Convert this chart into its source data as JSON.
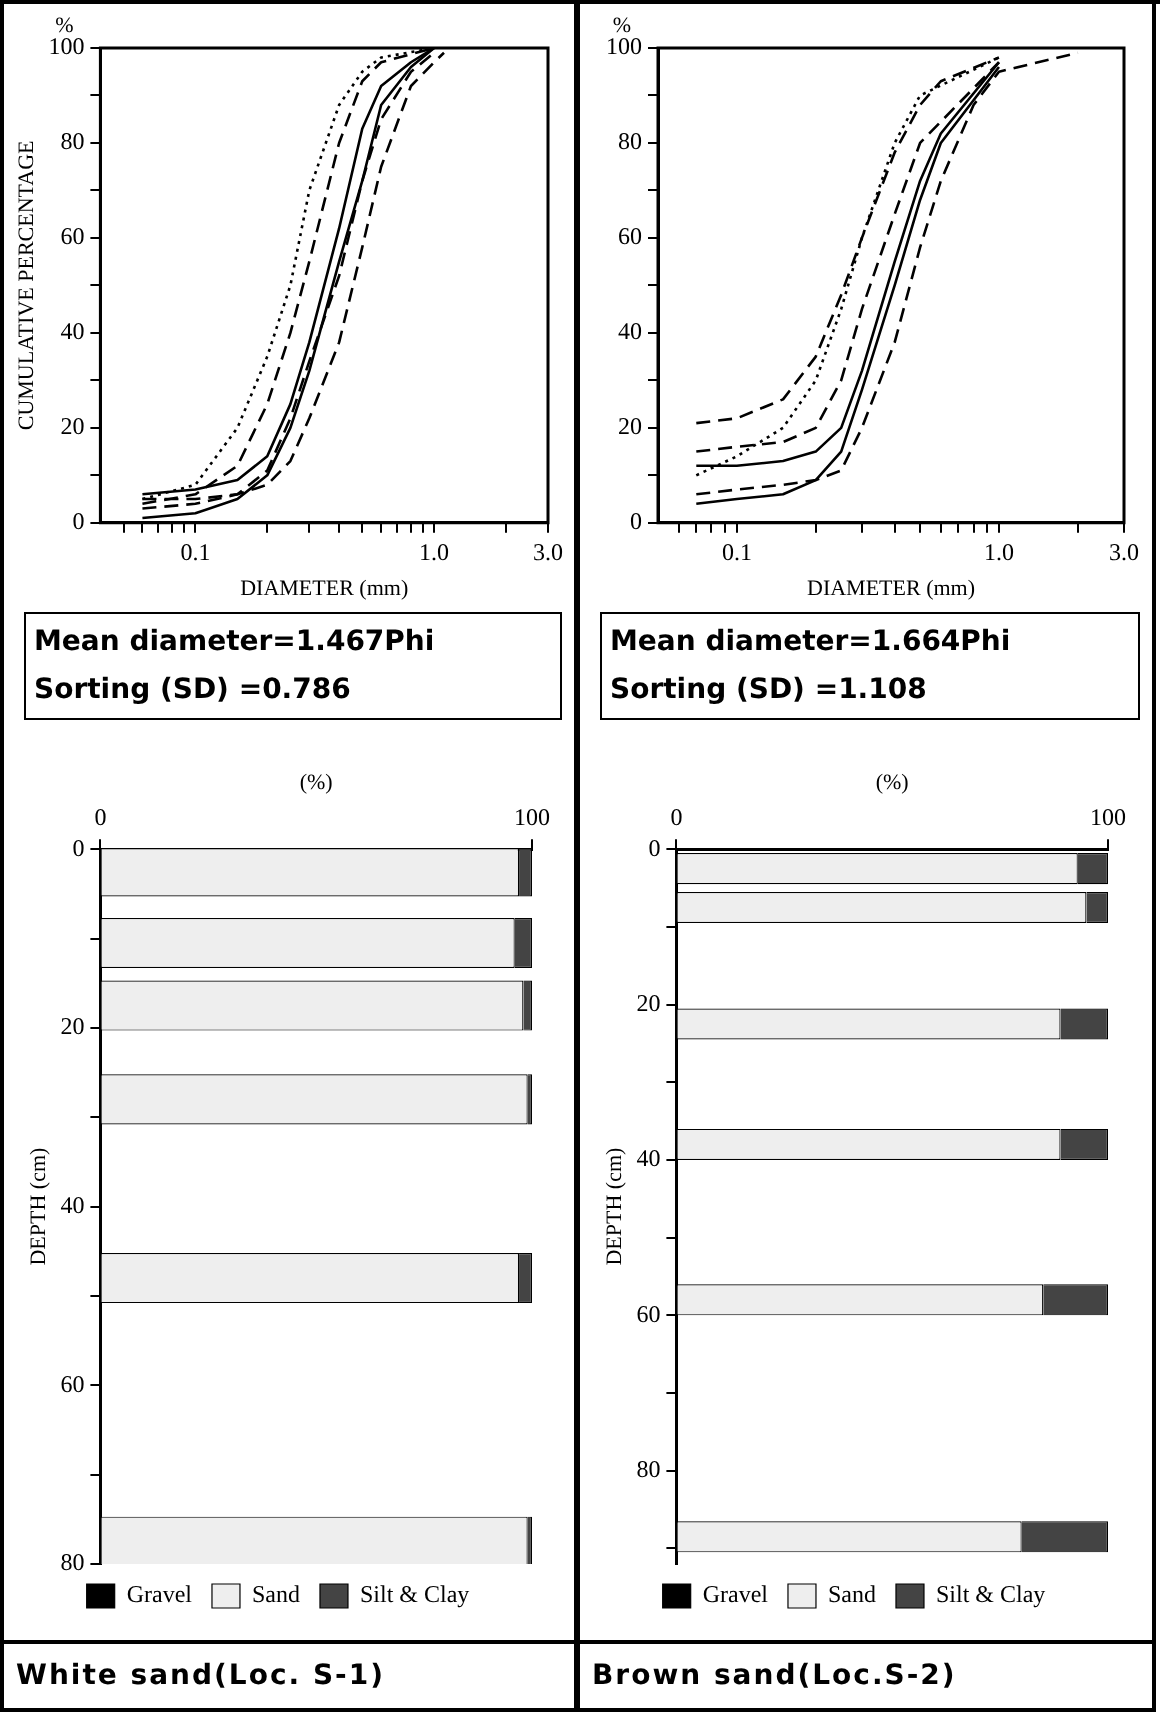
{
  "chart_data": [
    {
      "type": "line",
      "xlabel": "DIAMETER (mm)",
      "ylabel": "CUMULATIVE PERCENTAGE",
      "log": "x",
      "annotations": [
        "%",
        "Mean diameter=1.467Phi",
        "Sorting (SD) =0.786"
      ],
      "xlim": [
        0.04,
        3
      ],
      "xticks": [
        {
          "value": 0.05,
          "label": null
        },
        {
          "value": 0.06,
          "label": null
        },
        {
          "value": 0.07,
          "label": null
        },
        {
          "value": 0.08,
          "label": null
        },
        {
          "value": 0.09,
          "label": null
        },
        0.1,
        {
          "value": 0.2,
          "label": null
        },
        {
          "value": 0.3,
          "label": null
        },
        {
          "value": 0.4,
          "label": null
        },
        {
          "value": 0.5,
          "label": null
        },
        {
          "value": 0.6,
          "label": null
        },
        {
          "value": 0.7,
          "label": null
        },
        {
          "value": 0.8,
          "label": null
        },
        {
          "value": 0.9,
          "label": null
        },
        {
          "value": 1,
          "label": "1.0"
        },
        {
          "value": 2,
          "label": null
        },
        {
          "value": 3,
          "label": "3.0"
        }
      ],
      "ylim": [
        0,
        100
      ],
      "yticks": [
        0,
        {
          "value": 10,
          "label": null
        },
        20,
        {
          "value": 30,
          "label": null
        },
        40,
        {
          "value": 50,
          "label": null
        },
        60,
        {
          "value": 70,
          "label": null
        },
        80,
        {
          "value": 90,
          "label": null
        },
        100
      ],
      "series": [
        {
          "color": "#000000",
          "line_style": "dotted",
          "x": [
            0.06,
            0.1,
            0.15,
            0.2,
            0.25,
            0.3,
            0.4,
            0.5,
            0.6,
            1.0
          ],
          "values": [
            5,
            8,
            20,
            35,
            50,
            70,
            88,
            95,
            98,
            100
          ]
        },
        {
          "color": "#000000",
          "line_style": "dashed",
          "x": [
            0.06,
            0.1,
            0.15,
            0.2,
            0.25,
            0.3,
            0.4,
            0.5,
            0.6,
            1.0
          ],
          "values": [
            4,
            6,
            12,
            25,
            40,
            55,
            80,
            93,
            97,
            100
          ]
        },
        {
          "color": "#000000",
          "line_style": "solid",
          "x": [
            0.06,
            0.1,
            0.15,
            0.2,
            0.25,
            0.3,
            0.4,
            0.5,
            0.6,
            0.8,
            1.0
          ],
          "values": [
            6,
            7,
            9,
            14,
            25,
            38,
            62,
            83,
            92,
            97,
            100
          ]
        },
        {
          "color": "#000000",
          "line_style": "solid",
          "x": [
            0.06,
            0.1,
            0.15,
            0.2,
            0.25,
            0.3,
            0.4,
            0.5,
            0.6,
            0.8,
            1.0
          ],
          "values": [
            1,
            2,
            5,
            10,
            20,
            32,
            55,
            72,
            88,
            96,
            100
          ]
        },
        {
          "color": "#000000",
          "line_style": "dashed",
          "x": [
            0.06,
            0.1,
            0.15,
            0.2,
            0.25,
            0.3,
            0.4,
            0.5,
            0.6,
            0.8,
            1.0
          ],
          "values": [
            3,
            4,
            6,
            11,
            22,
            34,
            52,
            72,
            85,
            95,
            99
          ]
        },
        {
          "color": "#000000",
          "line_style": "dashed",
          "x": [
            0.06,
            0.1,
            0.15,
            0.2,
            0.25,
            0.3,
            0.4,
            0.5,
            0.6,
            0.8,
            1.0,
            1.1
          ],
          "values": [
            5,
            5,
            6,
            8,
            13,
            22,
            38,
            58,
            75,
            92,
            97,
            99
          ]
        }
      ]
    },
    {
      "type": "line",
      "xlabel": "DIAMETER (mm)",
      "log": "x",
      "annotations": [
        "%",
        "Mean diameter=1.664Phi",
        "Sorting (SD) =1.108"
      ],
      "xlim": [
        0.05,
        3
      ],
      "xticks": [
        {
          "value": 0.06,
          "label": null
        },
        {
          "value": 0.07,
          "label": null
        },
        {
          "value": 0.08,
          "label": null
        },
        {
          "value": 0.09,
          "label": null
        },
        0.1,
        {
          "value": 0.2,
          "label": null
        },
        {
          "value": 0.3,
          "label": null
        },
        {
          "value": 0.4,
          "label": null
        },
        {
          "value": 0.5,
          "label": null
        },
        {
          "value": 0.6,
          "label": null
        },
        {
          "value": 0.7,
          "label": null
        },
        {
          "value": 0.8,
          "label": null
        },
        {
          "value": 0.9,
          "label": null
        },
        {
          "value": 1,
          "label": "1.0"
        },
        {
          "value": 2,
          "label": null
        },
        {
          "value": 3,
          "label": "3.0"
        }
      ],
      "ylim": [
        0,
        100
      ],
      "yticks": [
        0,
        {
          "value": 10,
          "label": null
        },
        20,
        {
          "value": 30,
          "label": null
        },
        40,
        {
          "value": 50,
          "label": null
        },
        60,
        {
          "value": 70,
          "label": null
        },
        80,
        {
          "value": 90,
          "label": null
        },
        100
      ],
      "series": [
        {
          "color": "#000000",
          "line_style": "dashed",
          "x": [
            0.07,
            0.1,
            0.15,
            0.2,
            0.25,
            0.3,
            0.4,
            0.5,
            0.6,
            1.0
          ],
          "values": [
            21,
            22,
            26,
            35,
            48,
            60,
            78,
            88,
            93,
            98
          ]
        },
        {
          "color": "#000000",
          "line_style": "dotted",
          "x": [
            0.07,
            0.1,
            0.15,
            0.2,
            0.25,
            0.3,
            0.4,
            0.5,
            1.0
          ],
          "values": [
            10,
            14,
            20,
            30,
            45,
            60,
            80,
            90,
            98
          ]
        },
        {
          "color": "#000000",
          "line_style": "dashed",
          "x": [
            0.07,
            0.1,
            0.15,
            0.2,
            0.25,
            0.3,
            0.4,
            0.5,
            1.0
          ],
          "values": [
            15,
            16,
            17,
            20,
            30,
            45,
            65,
            80,
            97
          ]
        },
        {
          "color": "#000000",
          "line_style": "solid",
          "x": [
            0.07,
            0.1,
            0.15,
            0.2,
            0.25,
            0.3,
            0.4,
            0.5,
            0.6,
            1.0
          ],
          "values": [
            12,
            12,
            13,
            15,
            20,
            32,
            55,
            72,
            82,
            97
          ]
        },
        {
          "color": "#000000",
          "line_style": "solid",
          "x": [
            0.07,
            0.1,
            0.15,
            0.2,
            0.25,
            0.3,
            0.4,
            0.5,
            0.6,
            1.0
          ],
          "values": [
            4,
            5,
            6,
            9,
            15,
            28,
            50,
            68,
            80,
            96
          ]
        },
        {
          "color": "#000000",
          "line_style": "dashed",
          "x": [
            0.07,
            0.1,
            0.15,
            0.2,
            0.25,
            0.3,
            0.4,
            0.5,
            0.6,
            0.8,
            1.0,
            2.0
          ],
          "values": [
            6,
            7,
            8,
            9,
            11,
            20,
            38,
            58,
            72,
            88,
            95,
            99
          ]
        }
      ]
    },
    {
      "type": "bar",
      "orientation": "horizontal",
      "stacked": true,
      "legend": "bottom",
      "title": "White sand(Loc. S-1)",
      "xlabel": "(%)",
      "ylabel": "DEPTH (cm)",
      "x": [
        2.5,
        10.5,
        17.5,
        28,
        48,
        77.5
      ],
      "xlim": [
        0,
        100
      ],
      "xticks": [
        0,
        100
      ],
      "ylim": [
        80,
        0
      ],
      "yticks": [
        0,
        {
          "value": 10,
          "label": null
        },
        20,
        {
          "value": 30,
          "label": null
        },
        40,
        {
          "value": 50,
          "label": null
        },
        60,
        {
          "value": 70,
          "label": null
        },
        80
      ],
      "series": [
        {
          "name": "Gravel",
          "color": "#000000",
          "values": [
            0,
            0,
            0,
            0,
            0,
            0
          ]
        },
        {
          "name": "Sand",
          "color": "#eeeeee",
          "values": [
            97,
            96,
            98,
            99,
            97,
            99
          ]
        },
        {
          "name": "Silt & Clay",
          "color": "#444444",
          "values": [
            3,
            4,
            2,
            1,
            3,
            1
          ]
        }
      ]
    },
    {
      "type": "bar",
      "orientation": "horizontal",
      "stacked": true,
      "legend": "bottom",
      "title": "Brown sand(Loc.S-2)",
      "xlabel": "(%)",
      "ylabel": "DEPTH (cm)",
      "x": [
        2.5,
        7.5,
        22.5,
        38,
        58,
        88.5
      ],
      "xlim": [
        0,
        100
      ],
      "xticks": [
        0,
        100
      ],
      "ylim": [
        92,
        0
      ],
      "yticks": [
        0,
        {
          "value": 10,
          "label": null
        },
        20,
        {
          "value": 30,
          "label": null
        },
        40,
        {
          "value": 50,
          "label": null
        },
        60,
        {
          "value": 70,
          "label": null
        },
        80,
        {
          "value": 90,
          "label": null
        }
      ],
      "series": [
        {
          "name": "Gravel",
          "color": "#000000",
          "values": [
            0,
            0,
            0,
            0,
            0,
            0
          ]
        },
        {
          "name": "Sand",
          "color": "#eeeeee",
          "values": [
            93,
            95,
            89,
            89,
            85,
            80
          ]
        },
        {
          "name": "Silt & Clay",
          "color": "#444444",
          "values": [
            7,
            5,
            11,
            11,
            15,
            20
          ]
        }
      ]
    }
  ]
}
